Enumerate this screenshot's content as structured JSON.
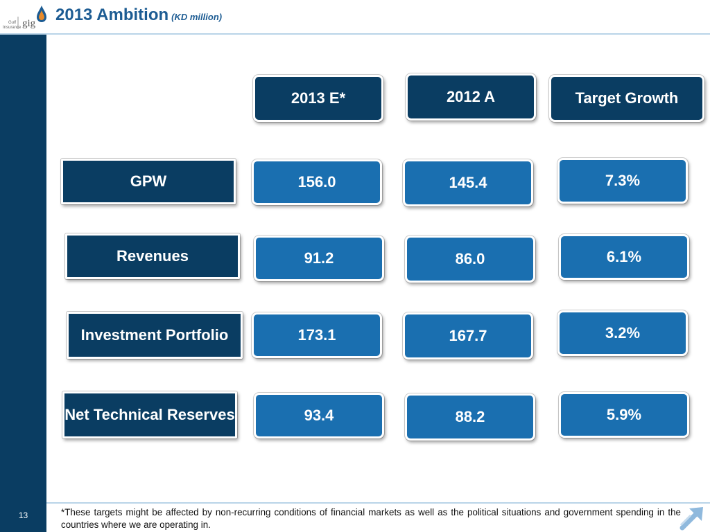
{
  "header": {
    "title": "2013 Ambition",
    "unit": "(KD million)",
    "logo": {
      "brand": "gig",
      "tagline_line1": "Gulf",
      "tagline_line2": "Insurance",
      "icon": "drop-logo-icon"
    }
  },
  "columns": [
    {
      "label": "2013 E*"
    },
    {
      "label": "2012 A"
    },
    {
      "label": "Target Growth"
    }
  ],
  "rows": [
    {
      "label": "GPW",
      "values": [
        "156.0",
        "145.4",
        "7.3%"
      ]
    },
    {
      "label": "Revenues",
      "values": [
        "91.2",
        "86.0",
        "6.1%"
      ]
    },
    {
      "label": "Investment Portfolio",
      "values": [
        "173.1",
        "167.7",
        "3.2%"
      ]
    },
    {
      "label": "Net Technical Reserves",
      "values": [
        "93.4",
        "88.2",
        "5.9%"
      ]
    }
  ],
  "footer": {
    "page_number": "13",
    "note": "*These targets might be affected by non-recurring conditions of financial markets as well as the political situations and government spending in the countries where we are operating in.",
    "corner_icon": "arrow-up-right-icon"
  },
  "colors": {
    "navy": "#0a3d62",
    "value_blue": "#1a6fb0",
    "title_blue": "#1d5c93"
  }
}
